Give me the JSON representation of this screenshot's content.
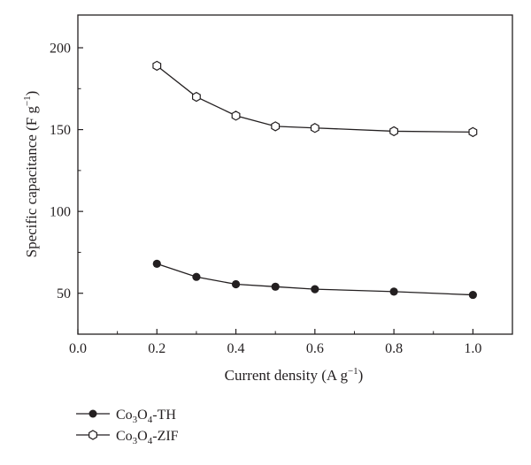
{
  "chart_data": {
    "type": "line",
    "xlabel": {
      "main": "Current density (A g",
      "sup": "−1",
      "close": ")"
    },
    "ylabel": {
      "main": "Specific capacitance (F g",
      "sup": "−1",
      "close": ")"
    },
    "xlim": [
      0.0,
      1.1
    ],
    "ylim": [
      25,
      220
    ],
    "xticks": [
      0.0,
      0.2,
      0.4,
      0.6,
      0.8,
      1.0
    ],
    "xtick_labels": [
      "0.0",
      "0.2",
      "0.4",
      "0.6",
      "0.8",
      "1.0"
    ],
    "yticks": [
      50,
      100,
      150,
      200
    ],
    "ytick_labels": [
      "50",
      "100",
      "150",
      "200"
    ],
    "grid": false,
    "legend_placement": "below",
    "series": [
      {
        "name": "Co3O4-TH",
        "label": {
          "a": "Co",
          "s1": "3",
          "b": "O",
          "s2": "4",
          "c": "-TH"
        },
        "marker": "filled-circle",
        "x": [
          0.2,
          0.3,
          0.4,
          0.5,
          0.6,
          0.8,
          1.0
        ],
        "values": [
          68,
          60,
          55.5,
          54,
          52.5,
          51,
          49
        ]
      },
      {
        "name": "Co3O4-ZIF",
        "label": {
          "a": "Co",
          "s1": "3",
          "b": "O",
          "s2": "4",
          "c": "-ZIF"
        },
        "marker": "open-hexagon",
        "x": [
          0.2,
          0.3,
          0.4,
          0.5,
          0.6,
          0.8,
          1.0
        ],
        "values": [
          189,
          170,
          158.5,
          152,
          151,
          149,
          148.5
        ]
      }
    ],
    "colors": {
      "line": "#231f20",
      "marker_fill_open": "#ffffff"
    }
  }
}
